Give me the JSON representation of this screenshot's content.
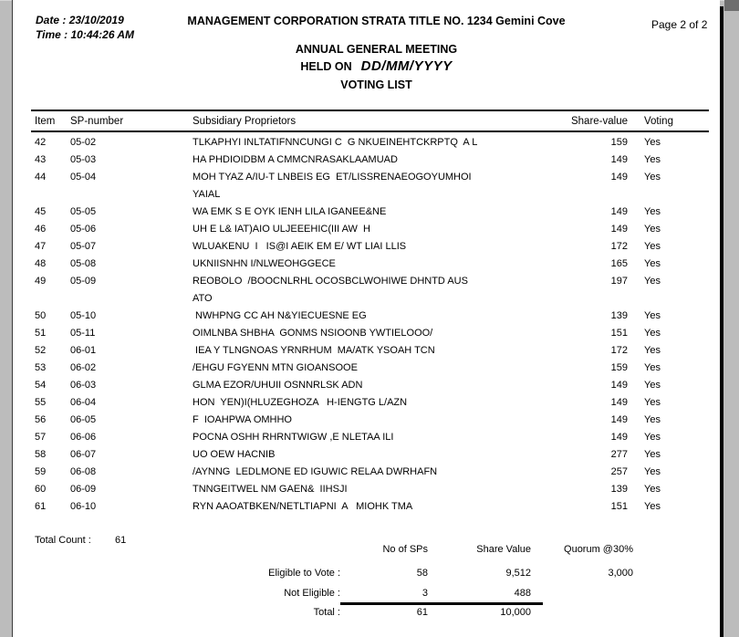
{
  "meta": {
    "date_label": "Date :",
    "date_value": "23/10/2019",
    "time_label": "Time :",
    "time_value": "10:44:26 AM",
    "page": "Page 2 of 2"
  },
  "header": {
    "title": "MANAGEMENT CORPORATION STRATA TITLE NO. 1234 Gemini Cove",
    "meeting": "ANNUAL GENERAL MEETING",
    "held_on_label": "HELD ON",
    "held_on_date": "DD/MM/YYYY",
    "list_title": "VOTING LIST"
  },
  "table": {
    "columns": [
      "Item",
      "SP-number",
      "Subsidiary Proprietors",
      "Share-value",
      "Voting"
    ],
    "rows": [
      {
        "item": "42",
        "sp": "05-02",
        "name": "TLKAPHYI INLTATIFNNCUNGI C  G NKUEINEHTCKRPTQ  A L",
        "name2": "",
        "share": "159",
        "voting": "Yes"
      },
      {
        "item": "43",
        "sp": "05-03",
        "name": "HA PHDIOIDBM A CMMCNRASAKLAAMUAD",
        "name2": "",
        "share": "149",
        "voting": "Yes"
      },
      {
        "item": "44",
        "sp": "05-04",
        "name": "MOH TYAZ A/IU-T LNBEIS EG  ET/LISSRENAEOGOYUMHOI",
        "name2": "YAIAL",
        "share": "149",
        "voting": "Yes"
      },
      {
        "item": "45",
        "sp": "05-05",
        "name": "WA EMK S E OYK IENH LILA IGANEE&NE",
        "name2": "",
        "share": "149",
        "voting": "Yes"
      },
      {
        "item": "46",
        "sp": "05-06",
        "name": "UH E L& IAT)AIO ULJEEEHIC(III AW  H",
        "name2": "",
        "share": "149",
        "voting": "Yes"
      },
      {
        "item": "47",
        "sp": "05-07",
        "name": "WLUAKENU  I   IS@I AEIK EM E/ WT LIAI LLIS",
        "name2": "",
        "share": "172",
        "voting": "Yes"
      },
      {
        "item": "48",
        "sp": "05-08",
        "name": "UKNIISNHN I/NLWEOHGGECE",
        "name2": "",
        "share": "165",
        "voting": "Yes"
      },
      {
        "item": "49",
        "sp": "05-09",
        "name": "REOBOLO  /BOOCNLRHL OCOSBCLWOHIWE DHNTD AUS",
        "name2": "ATO",
        "share": "197",
        "voting": "Yes"
      },
      {
        "item": "50",
        "sp": "05-10",
        "name": " NWHPNG CC AH N&YIECUESNE EG",
        "name2": "",
        "share": "139",
        "voting": "Yes"
      },
      {
        "item": "51",
        "sp": "05-11",
        "name": "OIMLNBA SHBHA  GONMS NSIOONB YWTIELOOO/",
        "name2": "",
        "share": "151",
        "voting": "Yes"
      },
      {
        "item": "52",
        "sp": "06-01",
        "name": " IEA Y TLNGNOAS YRNRHUM  MA/ATK YSOAH TCN",
        "name2": "",
        "share": "172",
        "voting": "Yes"
      },
      {
        "item": "53",
        "sp": "06-02",
        "name": "/EHGU FGYENN MTN GIOANSOOE",
        "name2": "",
        "share": "159",
        "voting": "Yes"
      },
      {
        "item": "54",
        "sp": "06-03",
        "name": "GLMA EZOR/UHUII OSNNRLSK ADN",
        "name2": "",
        "share": "149",
        "voting": "Yes"
      },
      {
        "item": "55",
        "sp": "06-04",
        "name": "HON  YEN)I(HLUZEGHOZA   H-IENGTG L/AZN",
        "name2": "",
        "share": "149",
        "voting": "Yes"
      },
      {
        "item": "56",
        "sp": "06-05",
        "name": "F  IOAHPWA OMHHO",
        "name2": "",
        "share": "149",
        "voting": "Yes"
      },
      {
        "item": "57",
        "sp": "06-06",
        "name": "POCNA OSHH RHRNTWIGW ,E NLETAA ILI",
        "name2": "",
        "share": "149",
        "voting": "Yes"
      },
      {
        "item": "58",
        "sp": "06-07",
        "name": "UO OEW HACNIB",
        "name2": "",
        "share": "277",
        "voting": "Yes"
      },
      {
        "item": "59",
        "sp": "06-08",
        "name": "/AYNNG  LEDLMONE ED IGUWIC RELAA DWRHAFN",
        "name2": "",
        "share": "257",
        "voting": "Yes"
      },
      {
        "item": "60",
        "sp": "06-09",
        "name": "TNNGEITWEL NM GAEN&  IIHSJI",
        "name2": "",
        "share": "139",
        "voting": "Yes"
      },
      {
        "item": "61",
        "sp": "06-10",
        "name": "RYN AAOATBKEN/NETLTIAPNI  A   MIOHK TMA",
        "name2": "",
        "share": "151",
        "voting": "Yes"
      }
    ]
  },
  "summary": {
    "total_count_label": "Total Count :",
    "total_count_value": "61",
    "col_headers": [
      "No of SPs",
      "Share Value",
      "Quorum @30%"
    ],
    "rows": [
      {
        "label": "Eligible to Vote :",
        "sps": "58",
        "share": "9,512",
        "quorum": "3,000"
      },
      {
        "label": "Not Eligible :",
        "sps": "3",
        "share": "488",
        "quorum": ""
      },
      {
        "label": "Total :",
        "sps": "61",
        "share": "10,000",
        "quorum": ""
      }
    ]
  },
  "colors": {
    "page_bg": "#ffffff",
    "text": "#000000",
    "gutter": "#bcbcbc"
  }
}
